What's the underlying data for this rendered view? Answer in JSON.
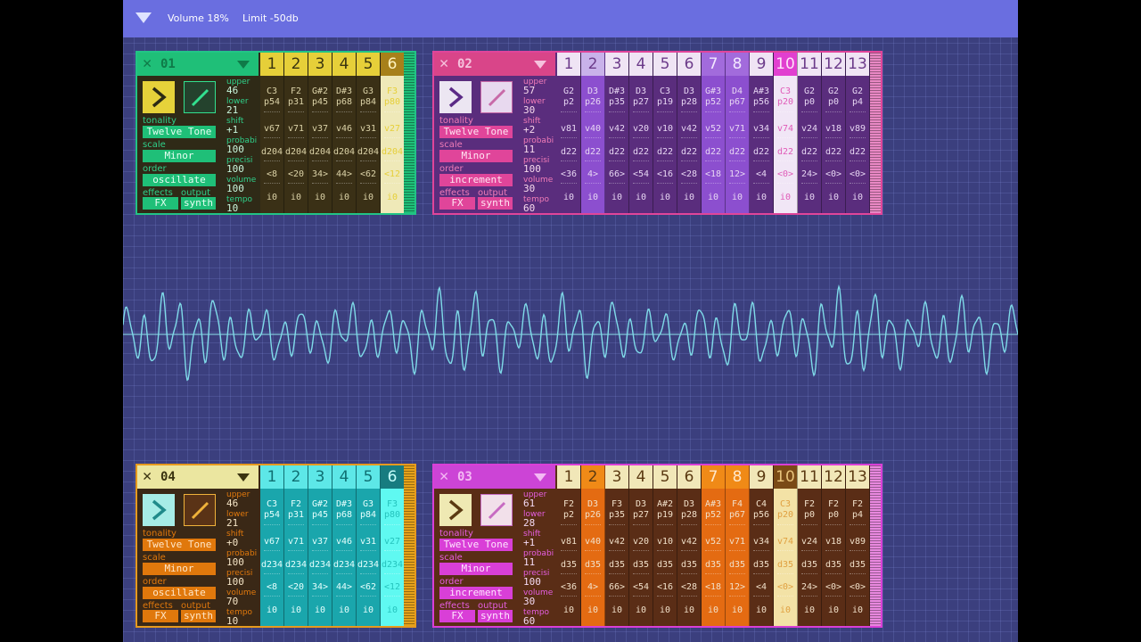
{
  "topbar": {
    "volume": "Volume 18%",
    "limit": "Limit -50db"
  },
  "labels": {
    "tonality": "tonality",
    "scale": "scale",
    "order": "order",
    "effects": "effects",
    "output": "output",
    "upper": "upper",
    "lower": "lower",
    "shift": "shift",
    "probability": "probabi",
    "precision": "precisi",
    "volume": "volume",
    "tempo": "tempo"
  },
  "panels": [
    {
      "name": "01",
      "theme": {
        "panel": "#2f2a17",
        "border": "#22c386",
        "head": "#1fbf78",
        "headtext": "#0f7a48",
        "pill": "#1fbf78",
        "pilltext": "#e7fff3",
        "label": "#2fd08a",
        "val": "#c8f5dc",
        "play": "#e6d23a",
        "playicon": "#2b2a14",
        "edit": "#24422d",
        "editline": "#32e08f",
        "numbg": "#e6cf39",
        "numtext": "#3a3510",
        "coltext": "#dcd3a8",
        "scroll": "#1fbf78"
      },
      "tonality": "Twelve Tone",
      "scale": "Minor",
      "order": "oscillate",
      "effects": "FX",
      "output": "synth",
      "upper": "46",
      "lower": "21",
      "shift": "+1",
      "probability": "100",
      "precision": "100",
      "volume": "100",
      "tempo": "10",
      "columns": [
        {
          "num": "1",
          "note": "C3",
          "p": "p54",
          "v": "v67",
          "d": "d204",
          "o": "<8",
          "i": "i0",
          "bg": "#3a3016",
          "numbg": "#e6cf39"
        },
        {
          "num": "2",
          "note": "F2",
          "p": "p31",
          "v": "v71",
          "d": "d204",
          "o": "<20",
          "i": "i0",
          "bg": "#3a3016",
          "numbg": "#e6cf39"
        },
        {
          "num": "3",
          "note": "G#2",
          "p": "p45",
          "v": "v37",
          "d": "d204",
          "o": "34>",
          "i": "i0",
          "bg": "#3a3016",
          "numbg": "#e6cf39"
        },
        {
          "num": "4",
          "note": "D#3",
          "p": "p68",
          "v": "v46",
          "d": "d204",
          "o": "44>",
          "i": "i0",
          "bg": "#3a3016",
          "numbg": "#e6cf39"
        },
        {
          "num": "5",
          "note": "G3",
          "p": "p84",
          "v": "v31",
          "d": "d204",
          "o": "<62",
          "i": "i0",
          "bg": "#3a3016",
          "numbg": "#e6cf39"
        },
        {
          "num": "6",
          "note": "F3",
          "p": "p80",
          "v": "v27",
          "d": "d204",
          "o": "<12",
          "i": "i0",
          "bg": "#efe9b8",
          "numbg": "#a7801a",
          "text": "#e6cf39",
          "numtext": "#fff3bf"
        }
      ]
    },
    {
      "name": "02",
      "theme": {
        "panel": "#5a2d7d",
        "border": "#e0459a",
        "head": "#d94589",
        "headtext": "#f6c2dd",
        "pill": "#e0459a",
        "pilltext": "#ffe6f3",
        "label": "#f07bb7",
        "val": "#f6d9ec",
        "play": "#ece6f2",
        "playicon": "#5b2a86",
        "edit": "#e8d9ef",
        "editline": "#c86aa8",
        "numbg": "#efe4f4",
        "numtext": "#6c3b8a",
        "coltext": "#e7d6f3",
        "scroll": "#e988c4"
      },
      "tonality": "Twelve Tone",
      "scale": "Minor",
      "order": "increment",
      "effects": "FX",
      "output": "synth",
      "upper": "57",
      "lower": "30",
      "shift": "+2",
      "probability": "11",
      "precision": "100",
      "volume": "30",
      "tempo": "60",
      "columns": [
        {
          "num": "1",
          "note": "G2",
          "p": "p2",
          "v": "v81",
          "d": "d22",
          "o": "<36",
          "i": "i0",
          "bg": "#5a2d7d",
          "numbg": "#efe4f4"
        },
        {
          "num": "2",
          "note": "D3",
          "p": "p26",
          "v": "v40",
          "d": "d22",
          "o": "4>",
          "i": "i0",
          "bg": "#8c4fcf",
          "numbg": "#c9b2ea"
        },
        {
          "num": "3",
          "note": "D#3",
          "p": "p35",
          "v": "v42",
          "d": "d22",
          "o": "66>",
          "i": "i0",
          "bg": "#5a2d7d",
          "numbg": "#efe4f4"
        },
        {
          "num": "4",
          "note": "D3",
          "p": "p27",
          "v": "v20",
          "d": "d22",
          "o": "<54",
          "i": "i0",
          "bg": "#5a2d7d",
          "numbg": "#efe4f4"
        },
        {
          "num": "5",
          "note": "C3",
          "p": "p19",
          "v": "v10",
          "d": "d22",
          "o": "<16",
          "i": "i0",
          "bg": "#5a2d7d",
          "numbg": "#efe4f4"
        },
        {
          "num": "6",
          "note": "D3",
          "p": "p28",
          "v": "v42",
          "d": "d22",
          "o": "<28",
          "i": "i0",
          "bg": "#5a2d7d",
          "numbg": "#efe4f4"
        },
        {
          "num": "7",
          "note": "G#3",
          "p": "p52",
          "v": "v52",
          "d": "d22",
          "o": "<18",
          "i": "i0",
          "bg": "#8c4fcf",
          "numbg": "#a26bdc",
          "numtext": "#f3e8ff"
        },
        {
          "num": "8",
          "note": "D4",
          "p": "p67",
          "v": "v71",
          "d": "d22",
          "o": "12>",
          "i": "i0",
          "bg": "#8c4fcf",
          "numbg": "#a26bdc",
          "numtext": "#f3e8ff"
        },
        {
          "num": "9",
          "note": "A#3",
          "p": "p56",
          "v": "v34",
          "d": "d22",
          "o": "<4",
          "i": "i0",
          "bg": "#5a2d7d",
          "numbg": "#efe4f4"
        },
        {
          "num": "10",
          "note": "C3",
          "p": "p20",
          "v": "v74",
          "d": "d22",
          "o": "<0>",
          "i": "i0",
          "bg": "#f1e6f6",
          "numbg": "#e13fd0",
          "numtext": "#ffe0fa",
          "text": "#e05bb8"
        },
        {
          "num": "11",
          "note": "G2",
          "p": "p0",
          "v": "v24",
          "d": "d22",
          "o": "24>",
          "i": "i0",
          "bg": "#5a2d7d",
          "numbg": "#efe4f4"
        },
        {
          "num": "12",
          "note": "G2",
          "p": "p0",
          "v": "v18",
          "d": "d22",
          "o": "<0>",
          "i": "i0",
          "bg": "#5a2d7d",
          "numbg": "#efe4f4"
        },
        {
          "num": "13",
          "note": "G2",
          "p": "p4",
          "v": "v89",
          "d": "d22",
          "o": "<0>",
          "i": "i0",
          "bg": "#5a2d7d",
          "numbg": "#efe4f4"
        }
      ]
    },
    {
      "name": "04",
      "theme": {
        "panel": "#3a2816",
        "border": "#e69a1e",
        "head": "#ebe6a0",
        "headtext": "#3a3310",
        "pill": "#e0780c",
        "pilltext": "#ffe7c9",
        "label": "#e0780c",
        "val": "#f3e3c5",
        "play": "#a6ece6",
        "playicon": "#1f8a8a",
        "edit": "#5a3316",
        "editline": "#f0b23a",
        "numbg": "#5de7e7",
        "numtext": "#0f6f72",
        "coltext": "#e6fffd",
        "scroll": "#e6a21a"
      },
      "tonality": "Twelve Tone",
      "scale": "Minor",
      "order": "oscillate",
      "effects": "FX",
      "output": "synth",
      "upper": "46",
      "lower": "21",
      "shift": "+0",
      "probability": "100",
      "precision": "100",
      "volume": "70",
      "tempo": "10",
      "columns": [
        {
          "num": "1",
          "note": "C3",
          "p": "p54",
          "v": "v67",
          "d": "d234",
          "o": "<8",
          "i": "i0",
          "bg": "#1aa6ac",
          "numbg": "#5de7e7"
        },
        {
          "num": "2",
          "note": "F2",
          "p": "p31",
          "v": "v71",
          "d": "d234",
          "o": "<20",
          "i": "i0",
          "bg": "#1aa6ac",
          "numbg": "#5de7e7"
        },
        {
          "num": "3",
          "note": "G#2",
          "p": "p45",
          "v": "v37",
          "d": "d234",
          "o": "34>",
          "i": "i0",
          "bg": "#1aa6ac",
          "numbg": "#5de7e7"
        },
        {
          "num": "4",
          "note": "D#3",
          "p": "p68",
          "v": "v46",
          "d": "d234",
          "o": "44>",
          "i": "i0",
          "bg": "#1aa6ac",
          "numbg": "#5de7e7"
        },
        {
          "num": "5",
          "note": "G3",
          "p": "p84",
          "v": "v31",
          "d": "d234",
          "o": "<62",
          "i": "i0",
          "bg": "#1aa6ac",
          "numbg": "#5de7e7"
        },
        {
          "num": "6",
          "note": "F3",
          "p": "p80",
          "v": "v27",
          "d": "d234",
          "o": "<12",
          "i": "i0",
          "bg": "#5ff9f1",
          "numbg": "#177c80",
          "numtext": "#c6fffc",
          "text": "#25c3bd"
        }
      ]
    },
    {
      "name": "03",
      "theme": {
        "panel": "#5a2d16",
        "border": "#d93fd7",
        "head": "#cc44d6",
        "headtext": "#f4b9f4",
        "pill": "#d93fd7",
        "pilltext": "#ffe6ff",
        "label": "#e55ee0",
        "val": "#f3d9f2",
        "play": "#efe9b3",
        "playicon": "#5b3a12",
        "edit": "#f2e0ea",
        "editline": "#c76bc2",
        "numbg": "#f1e7b8",
        "numtext": "#5b3a12",
        "coltext": "#f1e0c9",
        "scroll": "#e888de"
      },
      "tonality": "Twelve Tone",
      "scale": "Minor",
      "order": "increment",
      "effects": "FX",
      "output": "synth",
      "upper": "61",
      "lower": "28",
      "shift": "+1",
      "probability": "11",
      "precision": "100",
      "volume": "30",
      "tempo": "60",
      "columns": [
        {
          "num": "1",
          "note": "F2",
          "p": "p2",
          "v": "v81",
          "d": "d35",
          "o": "<36",
          "i": "i0",
          "bg": "#5a2d16",
          "numbg": "#f1e7b8"
        },
        {
          "num": "2",
          "note": "D3",
          "p": "p26",
          "v": "v40",
          "d": "d35",
          "o": "4>",
          "i": "i0",
          "bg": "#e46b12",
          "numbg": "#f08a17"
        },
        {
          "num": "3",
          "note": "F3",
          "p": "p35",
          "v": "v42",
          "d": "d35",
          "o": "66>",
          "i": "i0",
          "bg": "#5a2d16",
          "numbg": "#f1e7b8"
        },
        {
          "num": "4",
          "note": "D3",
          "p": "p27",
          "v": "v20",
          "d": "d35",
          "o": "<54",
          "i": "i0",
          "bg": "#5a2d16",
          "numbg": "#f1e7b8"
        },
        {
          "num": "5",
          "note": "A#2",
          "p": "p19",
          "v": "v10",
          "d": "d35",
          "o": "<16",
          "i": "i0",
          "bg": "#5a2d16",
          "numbg": "#f1e7b8"
        },
        {
          "num": "6",
          "note": "D3",
          "p": "p28",
          "v": "v42",
          "d": "d35",
          "o": "<28",
          "i": "i0",
          "bg": "#5a2d16",
          "numbg": "#f1e7b8"
        },
        {
          "num": "7",
          "note": "A#3",
          "p": "p52",
          "v": "v52",
          "d": "d35",
          "o": "<18",
          "i": "i0",
          "bg": "#e46b12",
          "numbg": "#f08a17",
          "numtext": "#ffe7c9"
        },
        {
          "num": "8",
          "note": "F4",
          "p": "p67",
          "v": "v71",
          "d": "d35",
          "o": "12>",
          "i": "i0",
          "bg": "#e46b12",
          "numbg": "#f08a17",
          "numtext": "#ffe7c9"
        },
        {
          "num": "9",
          "note": "C4",
          "p": "p56",
          "v": "v34",
          "d": "d35",
          "o": "<4",
          "i": "i0",
          "bg": "#5a2d16",
          "numbg": "#f1e7b8"
        },
        {
          "num": "10",
          "note": "C3",
          "p": "p20",
          "v": "v74",
          "d": "d35",
          "o": "<0>",
          "i": "i0",
          "bg": "#f3e2a6",
          "numbg": "#7a4a16",
          "numtext": "#e7c27a",
          "text": "#e0a040"
        },
        {
          "num": "11",
          "note": "F2",
          "p": "p0",
          "v": "v24",
          "d": "d35",
          "o": "24>",
          "i": "i0",
          "bg": "#5a2d16",
          "numbg": "#f1e7b8"
        },
        {
          "num": "12",
          "note": "F2",
          "p": "p0",
          "v": "v18",
          "d": "d35",
          "o": "<0>",
          "i": "i0",
          "bg": "#5a2d16",
          "numbg": "#f1e7b8"
        },
        {
          "num": "13",
          "note": "F2",
          "p": "p4",
          "v": "v89",
          "d": "d35",
          "o": "<0>",
          "i": "i0",
          "bg": "#5a2d16",
          "numbg": "#f1e7b8"
        }
      ]
    }
  ],
  "waveform": {
    "color": "#7fdbe9",
    "axis_color": "#8fe3ee"
  }
}
